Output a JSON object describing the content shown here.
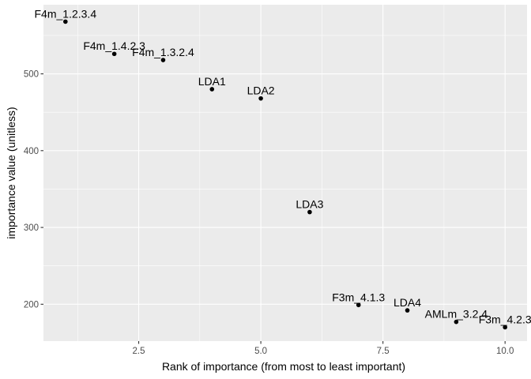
{
  "chart_data": {
    "type": "scatter",
    "title": "",
    "xlabel": "Rank of importance (from most to least important)",
    "ylabel": "importance value (unitless)",
    "xlim": [
      0.55,
      10.45
    ],
    "ylim": [
      152,
      590
    ],
    "xticks": [
      2.5,
      5.0,
      7.5,
      10.0
    ],
    "xtick_labels": [
      "2.5",
      "5.0",
      "7.5",
      "10.0"
    ],
    "yticks": [
      200,
      300,
      400,
      500
    ],
    "ytick_labels": [
      "200",
      "300",
      "400",
      "500"
    ],
    "grid": true,
    "legend": "none",
    "colors": {
      "panel": "#ebebeb",
      "grid_major": "#ffffff",
      "point": "#000000"
    },
    "points": [
      {
        "x": 1,
        "y": 568,
        "label": "F4m_1.2.3.4"
      },
      {
        "x": 2,
        "y": 526,
        "label": "F4m_1.4.2.3"
      },
      {
        "x": 3,
        "y": 518,
        "label": "F4m_1.3.2.4"
      },
      {
        "x": 4,
        "y": 480,
        "label": "LDA1"
      },
      {
        "x": 5,
        "y": 468,
        "label": "LDA2"
      },
      {
        "x": 6,
        "y": 320,
        "label": "LDA3"
      },
      {
        "x": 7,
        "y": 199,
        "label": "F3m_4.1.3"
      },
      {
        "x": 8,
        "y": 192,
        "label": "LDA4"
      },
      {
        "x": 9,
        "y": 177,
        "label": "AMLm_3.2.4"
      },
      {
        "x": 10,
        "y": 170,
        "label": "F3m_4.2.3"
      }
    ]
  }
}
